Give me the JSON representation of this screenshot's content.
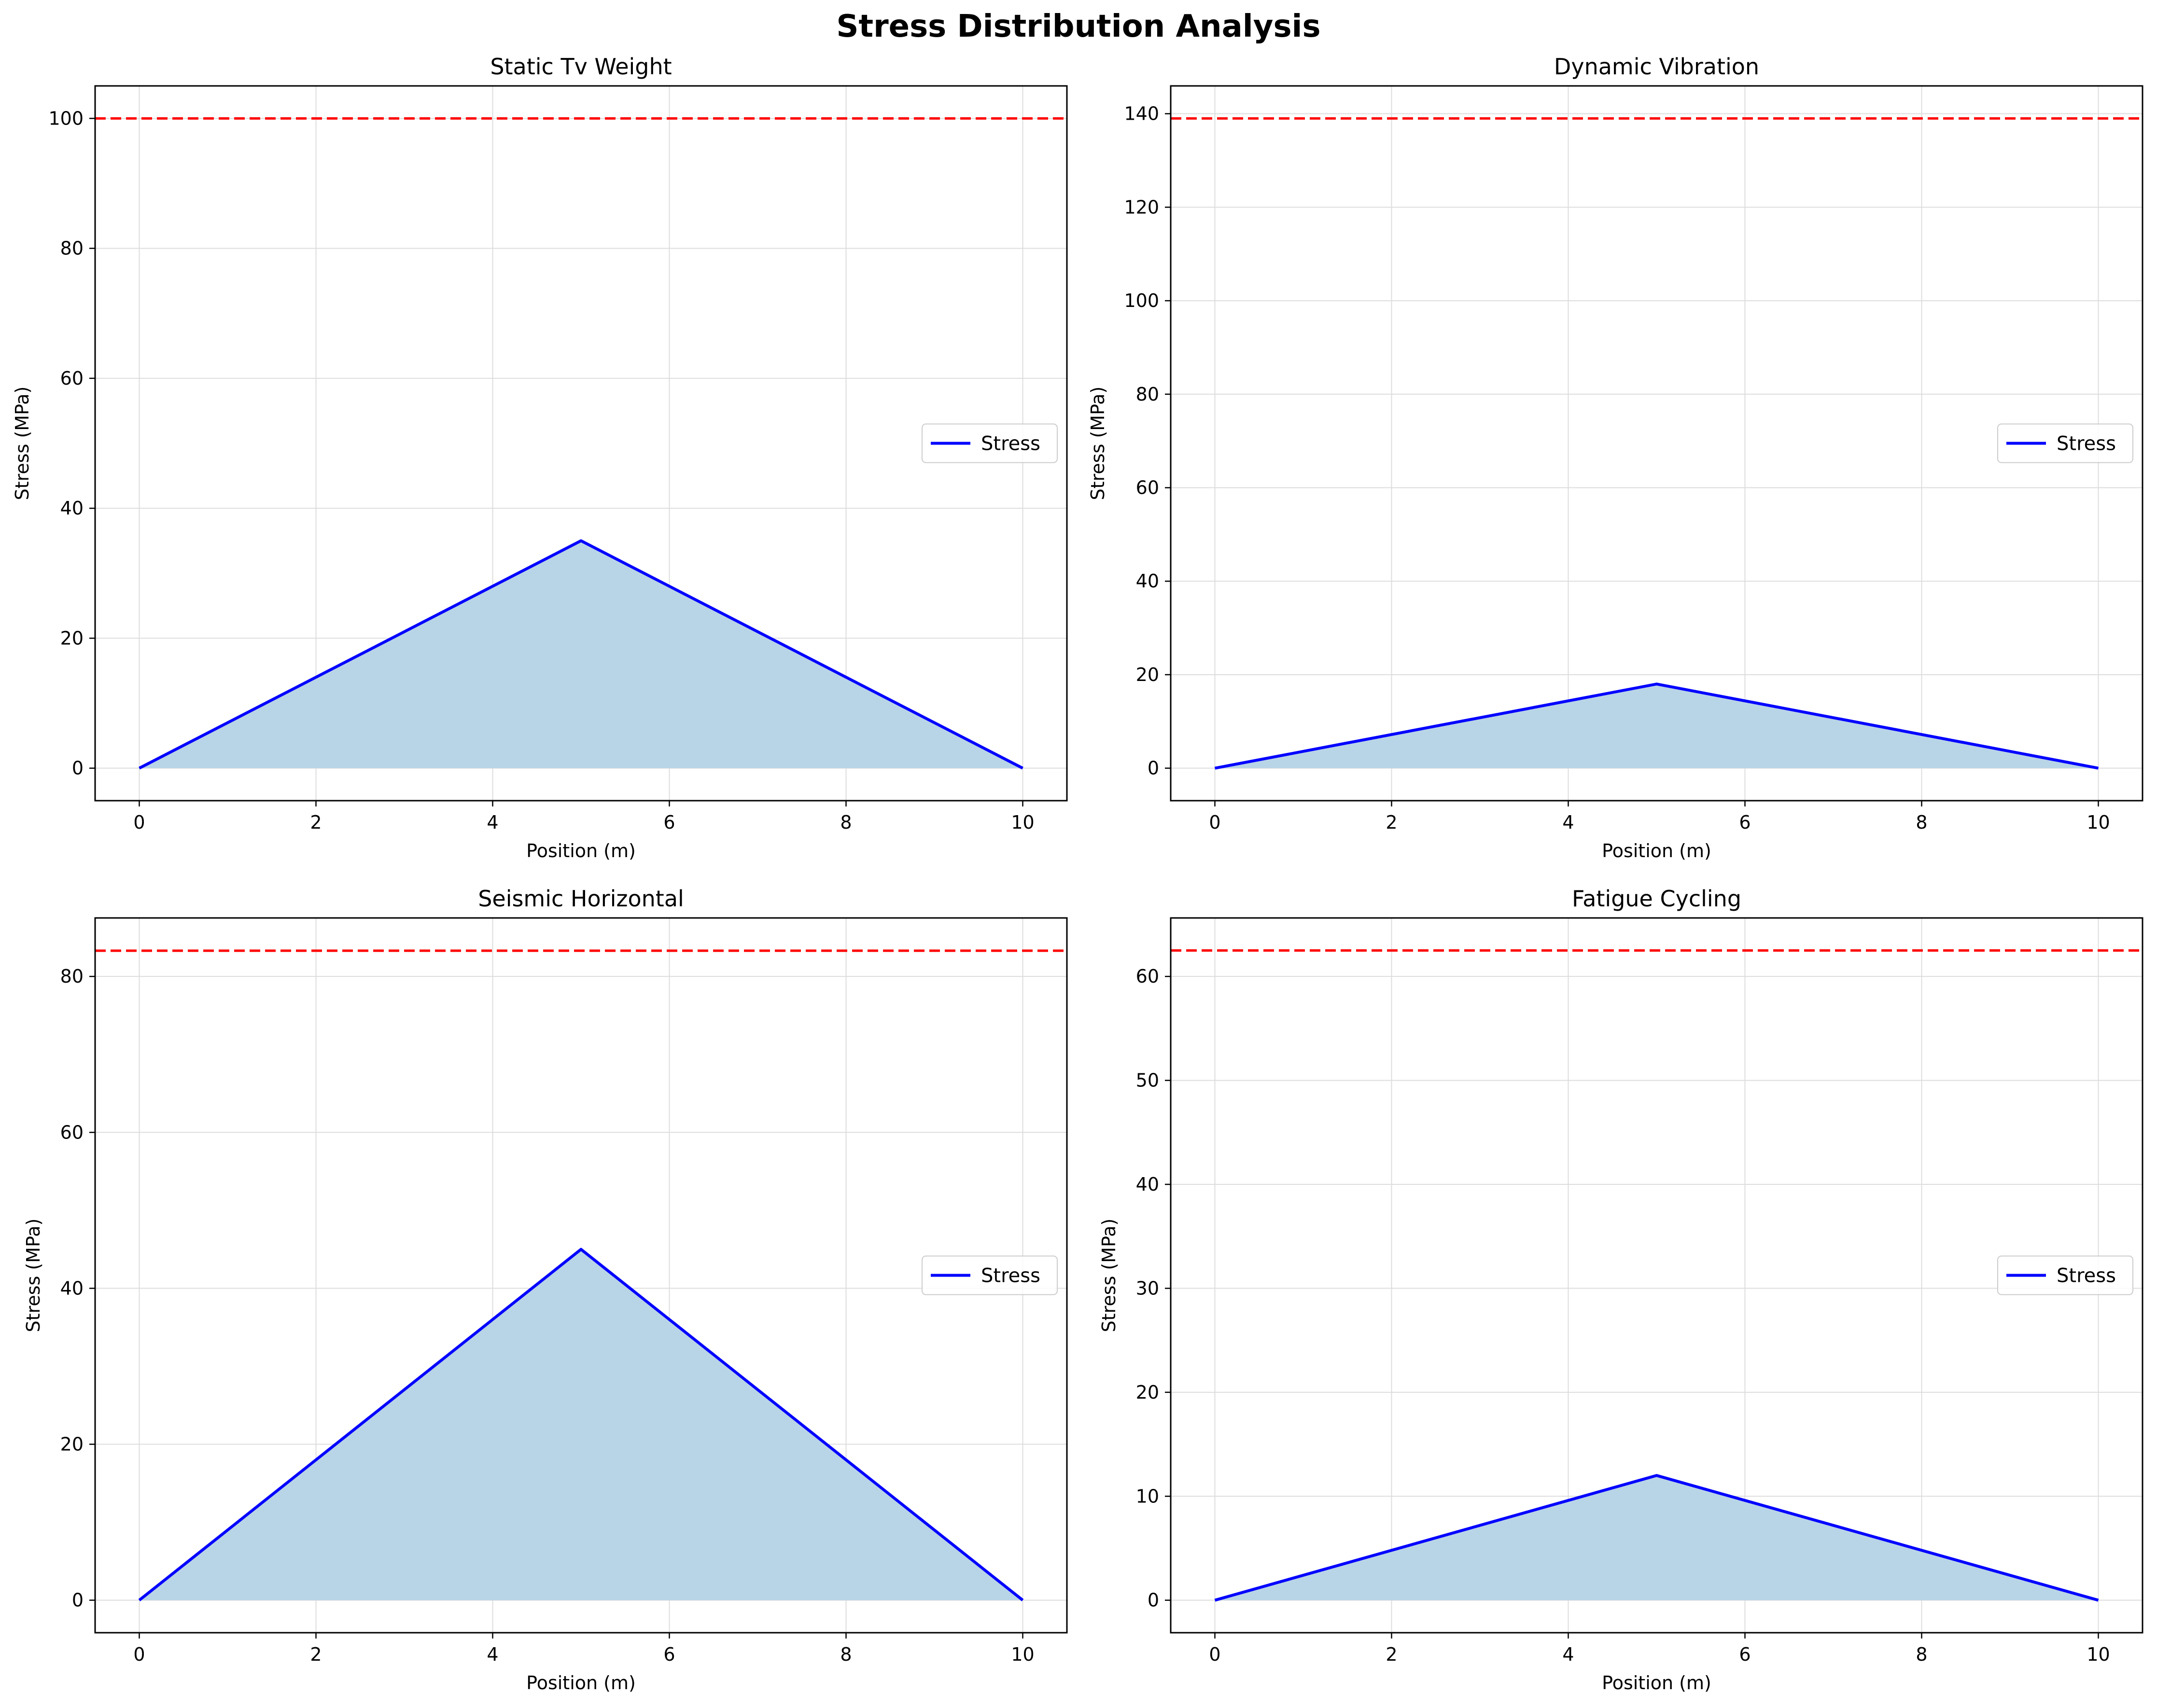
{
  "figure_title": "Stress Distribution Analysis",
  "colors": {
    "stress_line": "#0000ff",
    "fill": "#b8d4e7",
    "threshold": "#ff0000",
    "grid": "#dddddd"
  },
  "chart_data": [
    {
      "type": "line",
      "title": "Static Tv Weight",
      "xlabel": "Position (m)",
      "ylabel": "Stress (MPa)",
      "x": [
        0,
        5,
        10
      ],
      "series": [
        {
          "name": "Stress",
          "values": [
            0,
            35,
            0
          ]
        }
      ],
      "threshold": 100,
      "xlim": [
        -0.5,
        10.5
      ],
      "ylim": [
        -5,
        105
      ],
      "xticks": [
        0,
        2,
        4,
        6,
        8,
        10
      ],
      "yticks": [
        0,
        20,
        40,
        60,
        80,
        100
      ],
      "grid": true,
      "legend_position": "center-right"
    },
    {
      "type": "line",
      "title": "Dynamic Vibration",
      "xlabel": "Position (m)",
      "ylabel": "Stress (MPa)",
      "x": [
        0,
        5,
        10
      ],
      "series": [
        {
          "name": "Stress",
          "values": [
            0,
            18,
            0
          ]
        }
      ],
      "threshold": 139,
      "xlim": [
        -0.5,
        10.5
      ],
      "ylim": [
        -6.95,
        145.95
      ],
      "xticks": [
        0,
        2,
        4,
        6,
        8,
        10
      ],
      "yticks": [
        0,
        20,
        40,
        60,
        80,
        100,
        120,
        140
      ],
      "grid": true,
      "legend_position": "center-right"
    },
    {
      "type": "line",
      "title": "Seismic Horizontal",
      "xlabel": "Position (m)",
      "ylabel": "Stress (MPa)",
      "x": [
        0,
        5,
        10
      ],
      "series": [
        {
          "name": "Stress",
          "values": [
            0,
            45,
            0
          ]
        }
      ],
      "threshold": 83.3,
      "xlim": [
        -0.5,
        10.5
      ],
      "ylim": [
        -4.17,
        87.5
      ],
      "xticks": [
        0,
        2,
        4,
        6,
        8,
        10
      ],
      "yticks": [
        0,
        20,
        40,
        60,
        80
      ],
      "grid": true,
      "legend_position": "center-right"
    },
    {
      "type": "line",
      "title": "Fatigue Cycling",
      "xlabel": "Position (m)",
      "ylabel": "Stress (MPa)",
      "x": [
        0,
        5,
        10
      ],
      "series": [
        {
          "name": "Stress",
          "values": [
            0,
            12,
            0
          ]
        }
      ],
      "threshold": 62.5,
      "xlim": [
        -0.5,
        10.5
      ],
      "ylim": [
        -3.125,
        65.625
      ],
      "xticks": [
        0,
        2,
        4,
        6,
        8,
        10
      ],
      "yticks": [
        0,
        10,
        20,
        30,
        40,
        50,
        60
      ],
      "grid": true,
      "legend_position": "center-right"
    }
  ]
}
